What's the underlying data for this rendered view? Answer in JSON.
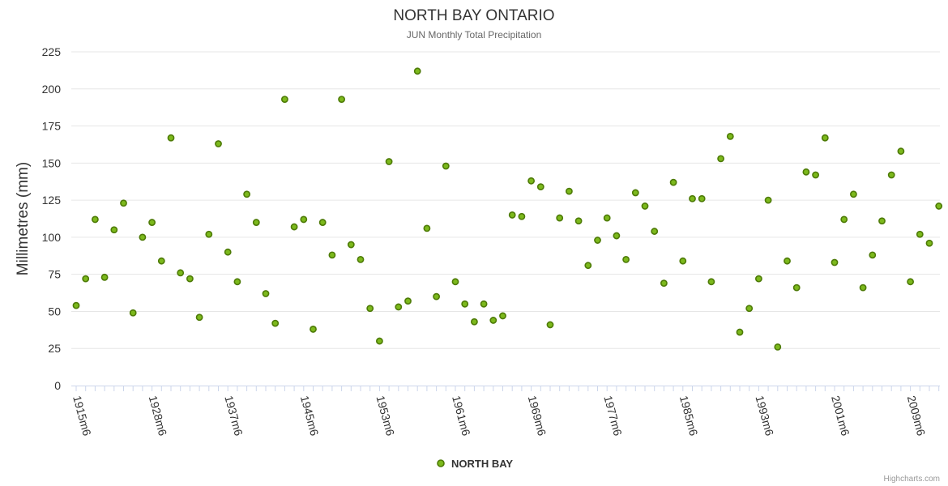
{
  "chart_data": {
    "type": "scatter",
    "title": "NORTH BAY ONTARIO",
    "subtitle": "JUN Monthly Total Precipitation",
    "ylabel": "Millimetres (mm)",
    "xlabel": "",
    "ylim": [
      0,
      225
    ],
    "y_ticks": [
      0,
      25,
      50,
      75,
      100,
      125,
      150,
      175,
      200,
      225
    ],
    "x_tick_labels": [
      "1915m6",
      "1928m6",
      "1937m6",
      "1945m6",
      "1953m6",
      "1961m6",
      "1969m6",
      "1977m6",
      "1985m6",
      "1993m6",
      "2001m6",
      "2009m6"
    ],
    "x_tick_indices": [
      0,
      8,
      16,
      24,
      32,
      40,
      48,
      56,
      64,
      72,
      80,
      88
    ],
    "grid": true,
    "legend": "bottom-center",
    "series": [
      {
        "name": "NORTH BAY",
        "color": "#7cb91c",
        "values": [
          54,
          72,
          112,
          73,
          105,
          123,
          49,
          100,
          110,
          84,
          167,
          76,
          72,
          46,
          102,
          163,
          90,
          70,
          129,
          110,
          62,
          42,
          193,
          107,
          112,
          38,
          110,
          88,
          193,
          95,
          85,
          52,
          30,
          151,
          53,
          57,
          212,
          106,
          60,
          148,
          70,
          55,
          43,
          55,
          44,
          47,
          115,
          114,
          138,
          134,
          41,
          113,
          131,
          111,
          81,
          98,
          113,
          101,
          85,
          130,
          121,
          104,
          69,
          137,
          84,
          126,
          126,
          70,
          153,
          168,
          36,
          52,
          72,
          125,
          26,
          84,
          66,
          144,
          142,
          167,
          83,
          112,
          129,
          66,
          88,
          111,
          142,
          158,
          70,
          102,
          96,
          121
        ]
      }
    ]
  },
  "credits": "Highcharts.com"
}
